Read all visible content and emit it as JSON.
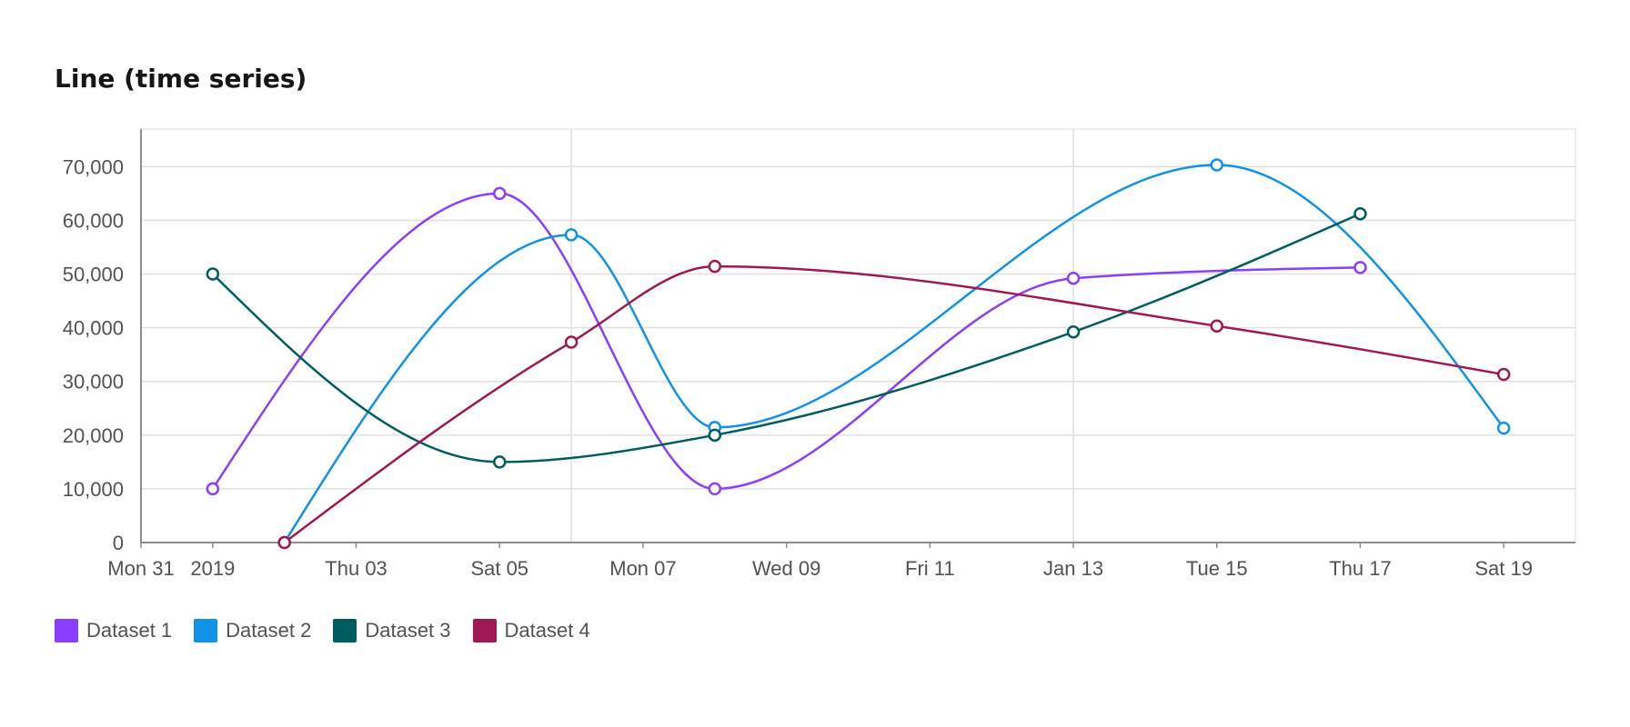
{
  "chart_data": {
    "type": "line",
    "title": "Line (time series)",
    "xlabel": "",
    "ylabel": "",
    "ylim": [
      0,
      77000
    ],
    "xlim": [
      "2018-12-31",
      "2019-01-20"
    ],
    "y_ticks": [
      0,
      10000,
      20000,
      30000,
      40000,
      50000,
      60000,
      70000
    ],
    "y_tick_labels": [
      "0",
      "10,000",
      "20,000",
      "30,000",
      "40,000",
      "50,000",
      "60,000",
      "70,000"
    ],
    "x_ticks": [
      {
        "date": "2018-12-31",
        "label": "Mon 31"
      },
      {
        "date": "2019-01-01",
        "label": "2019"
      },
      {
        "date": "2019-01-03",
        "label": "Thu 03"
      },
      {
        "date": "2019-01-05",
        "label": "Sat 05"
      },
      {
        "date": "2019-01-07",
        "label": "Mon 07"
      },
      {
        "date": "2019-01-09",
        "label": "Wed 09"
      },
      {
        "date": "2019-01-11",
        "label": "Fri 11"
      },
      {
        "date": "2019-01-13",
        "label": "Jan 13"
      },
      {
        "date": "2019-01-15",
        "label": "Tue 15"
      },
      {
        "date": "2019-01-17",
        "label": "Thu 17"
      },
      {
        "date": "2019-01-19",
        "label": "Sat 19"
      }
    ],
    "x_gridlines": [
      "2019-01-06",
      "2019-01-13"
    ],
    "grid": true,
    "legend_position": "bottom-left",
    "series": [
      {
        "name": "Dataset 1",
        "color": "#8a3ffc",
        "points": [
          {
            "x": "2019-01-01",
            "y": 10000
          },
          {
            "x": "2019-01-05",
            "y": 65000
          },
          {
            "x": "2019-01-08",
            "y": 10000
          },
          {
            "x": "2019-01-13",
            "y": 49213
          },
          {
            "x": "2019-01-17",
            "y": 51213
          }
        ]
      },
      {
        "name": "Dataset 2",
        "color": "#1192e8",
        "points": [
          {
            "x": "2019-01-02",
            "y": 0
          },
          {
            "x": "2019-01-06",
            "y": 57312
          },
          {
            "x": "2019-01-08",
            "y": 21432
          },
          {
            "x": "2019-01-15",
            "y": 70323
          },
          {
            "x": "2019-01-19",
            "y": 21300
          }
        ]
      },
      {
        "name": "Dataset 3",
        "color": "#005d5d",
        "points": [
          {
            "x": "2019-01-01",
            "y": 50000
          },
          {
            "x": "2019-01-05",
            "y": 15000
          },
          {
            "x": "2019-01-08",
            "y": 20000
          },
          {
            "x": "2019-01-13",
            "y": 39213
          },
          {
            "x": "2019-01-17",
            "y": 61213
          }
        ]
      },
      {
        "name": "Dataset 4",
        "color": "#9f1853",
        "points": [
          {
            "x": "2019-01-02",
            "y": 0
          },
          {
            "x": "2019-01-06",
            "y": 37312
          },
          {
            "x": "2019-01-08",
            "y": 51432
          },
          {
            "x": "2019-01-15",
            "y": 40323
          },
          {
            "x": "2019-01-19",
            "y": 31300
          }
        ]
      }
    ]
  }
}
